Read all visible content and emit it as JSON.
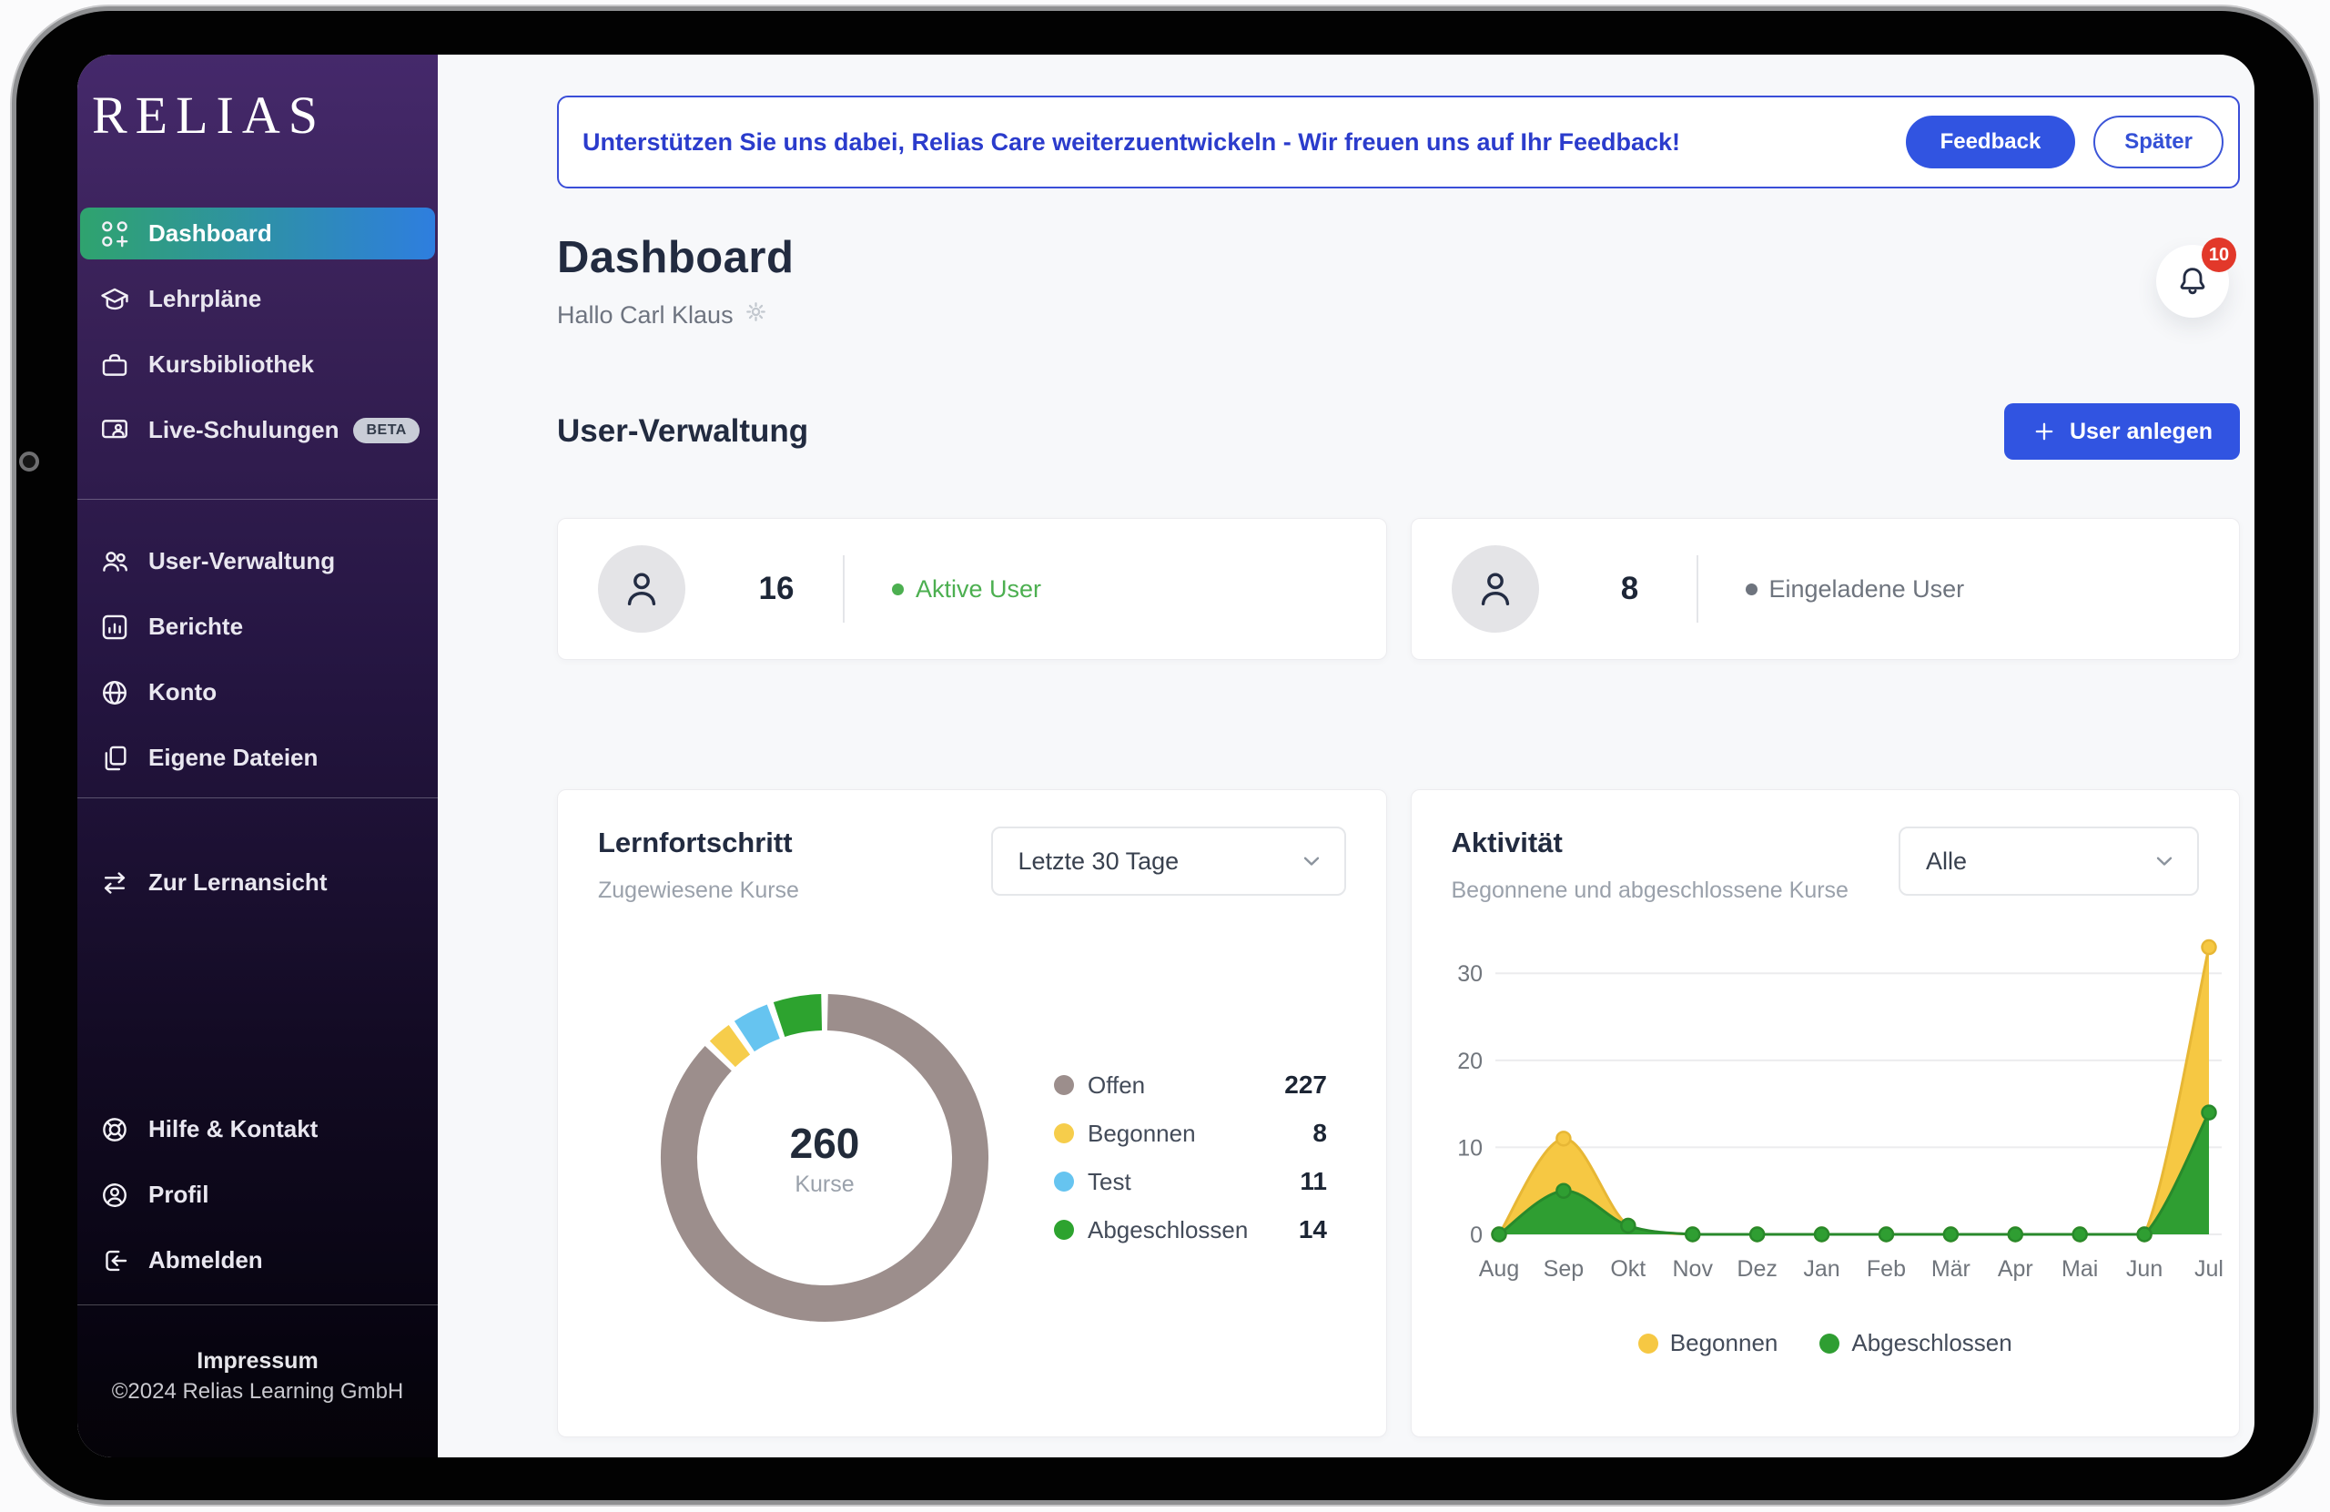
{
  "sidebar": {
    "logo_text": "RELIAS",
    "items": [
      {
        "label": "Dashboard"
      },
      {
        "label": "Lehrpläne"
      },
      {
        "label": "Kursbibliothek"
      },
      {
        "label": "Live-Schulungen",
        "badge": "BETA"
      },
      {
        "label": "User-Verwaltung"
      },
      {
        "label": "Berichte"
      },
      {
        "label": "Konto"
      },
      {
        "label": "Eigene Dateien"
      },
      {
        "label": "Zur Lernansicht"
      },
      {
        "label": "Hilfe & Kontakt"
      },
      {
        "label": "Profil"
      },
      {
        "label": "Abmelden"
      }
    ],
    "active_item": "Dashboard",
    "active_gradient": [
      "#2fa36e",
      "#2e7edf"
    ],
    "footer": {
      "impressum": "Impressum",
      "copyright": "©2024 Relias Learning GmbH"
    }
  },
  "banner": {
    "message": "Unterstützen Sie uns dabei, Relias Care weiterzuentwickeln - Wir freuen uns auf Ihr Feedback!",
    "feedback_label": "Feedback",
    "later_label": "Später",
    "accent_color": "#3154e1"
  },
  "header": {
    "title": "Dashboard",
    "greeting": "Hallo Carl Klaus",
    "notification_count": "10",
    "badge_color": "#e2382a"
  },
  "user_management": {
    "section_title": "User-Verwaltung",
    "add_user_label": "User anlegen",
    "stats": [
      {
        "value": "16",
        "label": "Aktive User",
        "color": "#4caf50"
      },
      {
        "value": "8",
        "label": "Eingeladene User",
        "color": "#6e747e"
      }
    ]
  },
  "chart_data": [
    {
      "id": "lernfortschritt-donut",
      "type": "donut",
      "title": "Lernfortschritt",
      "subtitle": "Zugewiesene Kurse",
      "filter_selected": "Letzte 30 Tage",
      "center_value": "260",
      "center_label": "Kurse",
      "segments": [
        {
          "label": "Offen",
          "value": 227,
          "color": "#9c8e8c"
        },
        {
          "label": "Begonnen",
          "value": 8,
          "color": "#f6cd4b"
        },
        {
          "label": "Test",
          "value": 11,
          "color": "#66c4f0"
        },
        {
          "label": "Abgeschlossen",
          "value": 14,
          "color": "#2da32f"
        }
      ]
    },
    {
      "id": "aktivitaet-area",
      "type": "area",
      "title": "Aktivität",
      "subtitle": "Begonnene und abgeschlossene Kurse",
      "filter_selected": "Alle",
      "categories": [
        "Aug",
        "Sep",
        "Okt",
        "Nov",
        "Dez",
        "Jan",
        "Feb",
        "Mär",
        "Apr",
        "Mai",
        "Jun",
        "Jul"
      ],
      "series": [
        {
          "name": "Begonnen",
          "color": "#f6c843",
          "line_color": "#e7b735",
          "values": [
            0,
            11,
            1,
            0,
            0,
            0,
            0,
            0,
            0,
            0,
            0,
            33
          ]
        },
        {
          "name": "Abgeschlossen",
          "color": "#2f9e32",
          "line_color": "#28892b",
          "values": [
            0,
            5,
            1,
            0,
            0,
            0,
            0,
            0,
            0,
            0,
            0,
            14
          ]
        }
      ],
      "yticks": [
        0,
        10,
        20,
        30
      ],
      "ylim": [
        0,
        34
      ],
      "grid": true,
      "legend_position": "bottom"
    }
  ]
}
